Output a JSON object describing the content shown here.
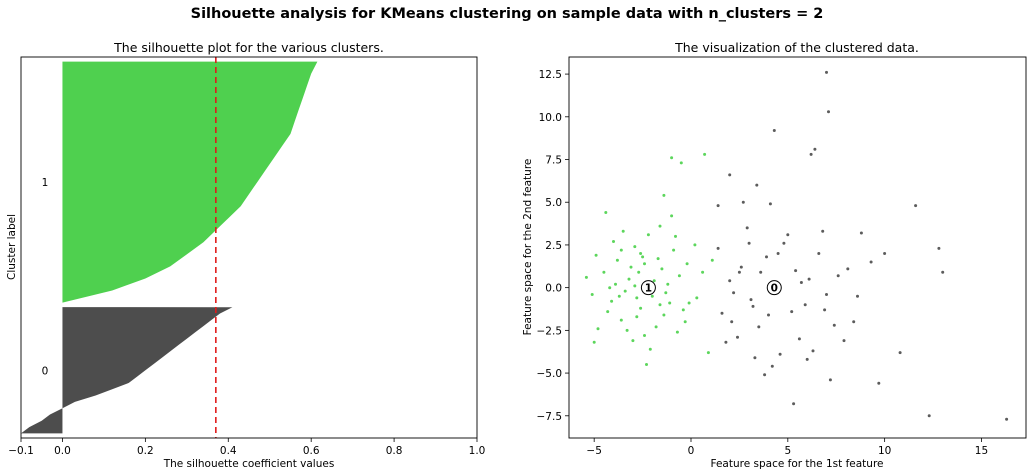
{
  "suptitle": "Silhouette analysis for KMeans clustering on sample data with n_clusters = 2",
  "chart_data": [
    {
      "type": "area",
      "title": "The silhouette plot for the various clusters.",
      "xlabel": "The silhouette coefficient values",
      "ylabel": "Cluster label",
      "xlim": [
        -0.1,
        1.0
      ],
      "xticks": [
        -0.1,
        0.0,
        0.2,
        0.4,
        0.6,
        0.8,
        1.0
      ],
      "xtick_labels": [
        "−0.1",
        "0.0",
        "0.2",
        "0.4",
        "0.6",
        "0.8",
        "1.0"
      ],
      "yticks": [
        {
          "label": "0",
          "cluster": 0
        },
        {
          "label": "1",
          "cluster": 1
        }
      ],
      "average_silhouette_score": 0.37,
      "clusters": [
        {
          "label": "0",
          "color": "#4d4d4d",
          "size": 275,
          "sorted_values": [
            -0.1,
            -0.08,
            -0.05,
            -0.03,
            0.0,
            0.03,
            0.08,
            0.12,
            0.16,
            0.18,
            0.2,
            0.22,
            0.24,
            0.26,
            0.28,
            0.3,
            0.32,
            0.34,
            0.36,
            0.38,
            0.41
          ]
        },
        {
          "label": "1",
          "color": "#4fd04f",
          "size": 525,
          "sorted_values": [
            0.0,
            0.12,
            0.2,
            0.26,
            0.3,
            0.34,
            0.37,
            0.4,
            0.43,
            0.45,
            0.47,
            0.49,
            0.51,
            0.53,
            0.55,
            0.56,
            0.57,
            0.58,
            0.59,
            0.6,
            0.615
          ]
        }
      ]
    },
    {
      "type": "scatter",
      "title": "The visualization of the clustered data.",
      "xlabel": "Feature space for the 1st feature",
      "ylabel": "Feature space for the 2nd feature",
      "xlim": [
        -6.3,
        17.3
      ],
      "ylim": [
        -8.8,
        13.5
      ],
      "xticks": [
        -5,
        0,
        5,
        10,
        15
      ],
      "xtick_labels": [
        "−5",
        "0",
        "5",
        "10",
        "15"
      ],
      "yticks": [
        -7.5,
        -5.0,
        -2.5,
        0.0,
        2.5,
        5.0,
        7.5,
        10.0,
        12.5
      ],
      "ytick_labels": [
        "−7.5",
        "−5.0",
        "−2.5",
        "0.0",
        "2.5",
        "5.0",
        "7.5",
        "10.0",
        "12.5"
      ],
      "series": [
        {
          "name": "cluster 1",
          "color": "#3fcf3f",
          "points": [
            [
              -2.1,
              0.0
            ],
            [
              -3.2,
              0.5
            ],
            [
              -2.8,
              -0.6
            ],
            [
              -1.5,
              1.1
            ],
            [
              -4.1,
              -0.8
            ],
            [
              -2.5,
              1.8
            ],
            [
              -3.6,
              -1.9
            ],
            [
              -1.1,
              -0.9
            ],
            [
              -2.9,
              2.4
            ],
            [
              -4.5,
              0.9
            ],
            [
              -1.8,
              -2.3
            ],
            [
              -3.0,
              -3.1
            ],
            [
              -0.6,
              0.7
            ],
            [
              -5.1,
              -0.4
            ],
            [
              -2.2,
              3.1
            ],
            [
              -1.4,
              -1.6
            ],
            [
              -3.8,
              1.6
            ],
            [
              -2.6,
              -1.2
            ],
            [
              -0.9,
              2.2
            ],
            [
              -4.8,
              -2.4
            ],
            [
              -1.9,
              0.4
            ],
            [
              -3.4,
              -0.2
            ],
            [
              -2.0,
              -0.5
            ],
            [
              -1.2,
              0.2
            ],
            [
              -2.7,
              0.9
            ],
            [
              -3.9,
              0.2
            ],
            [
              -4.3,
              -1.4
            ],
            [
              -0.4,
              -1.3
            ],
            [
              -1.6,
              3.6
            ],
            [
              -2.4,
              -2.8
            ],
            [
              -3.1,
              1.2
            ],
            [
              -0.2,
              1.4
            ],
            [
              -5.4,
              0.6
            ],
            [
              -1.0,
              4.2
            ],
            [
              -2.3,
              -4.5
            ],
            [
              0.3,
              -0.6
            ],
            [
              -3.5,
              3.3
            ],
            [
              -4.9,
              1.9
            ],
            [
              -0.7,
              -2.6
            ],
            [
              -2.8,
              -1.7
            ],
            [
              -1.3,
              -0.3
            ],
            [
              -4.0,
              2.7
            ],
            [
              0.6,
              0.9
            ],
            [
              -3.3,
              -2.5
            ],
            [
              -2.6,
              2.0
            ],
            [
              -1.7,
              1.7
            ],
            [
              -0.8,
              3.0
            ],
            [
              -4.4,
              4.4
            ],
            [
              -5.0,
              -3.2
            ],
            [
              -0.1,
              -0.9
            ],
            [
              -1.0,
              7.6
            ],
            [
              0.7,
              7.8
            ],
            [
              -0.5,
              7.3
            ],
            [
              0.9,
              -3.8
            ],
            [
              1.1,
              1.6
            ],
            [
              -1.4,
              5.4
            ],
            [
              -3.7,
              -0.5
            ],
            [
              -2.1,
              -3.6
            ],
            [
              -4.2,
              0.0
            ],
            [
              -1.6,
              -1.0
            ],
            [
              -0.3,
              -2.0
            ],
            [
              0.2,
              2.5
            ],
            [
              -2.9,
              0.1
            ],
            [
              -3.6,
              2.2
            ],
            [
              -2.4,
              1.4
            ]
          ]
        },
        {
          "name": "cluster 0",
          "color": "#404040",
          "points": [
            [
              4.3,
              0.0
            ],
            [
              3.1,
              -0.7
            ],
            [
              5.2,
              -1.4
            ],
            [
              2.6,
              1.2
            ],
            [
              6.1,
              0.5
            ],
            [
              4.8,
              2.6
            ],
            [
              3.5,
              -2.3
            ],
            [
              7.0,
              -0.4
            ],
            [
              2.0,
              0.4
            ],
            [
              5.6,
              -3.0
            ],
            [
              3.9,
              1.8
            ],
            [
              6.6,
              2.0
            ],
            [
              1.6,
              -1.5
            ],
            [
              8.1,
              1.1
            ],
            [
              4.6,
              -3.9
            ],
            [
              2.9,
              3.5
            ],
            [
              7.4,
              -2.2
            ],
            [
              5.0,
              3.1
            ],
            [
              3.3,
              -4.1
            ],
            [
              6.3,
              -3.7
            ],
            [
              1.4,
              2.3
            ],
            [
              9.3,
              1.5
            ],
            [
              2.4,
              -2.9
            ],
            [
              4.1,
              4.9
            ],
            [
              5.9,
              -1.0
            ],
            [
              7.9,
              -3.1
            ],
            [
              3.0,
              2.6
            ],
            [
              2.2,
              -0.3
            ],
            [
              6.8,
              3.3
            ],
            [
              4.0,
              -1.6
            ],
            [
              8.6,
              -0.5
            ],
            [
              2.7,
              5.0
            ],
            [
              5.4,
              1.0
            ],
            [
              3.6,
              0.9
            ],
            [
              10.0,
              2.0
            ],
            [
              11.6,
              4.8
            ],
            [
              13.0,
              0.9
            ],
            [
              12.8,
              2.3
            ],
            [
              10.8,
              -3.8
            ],
            [
              9.7,
              -5.6
            ],
            [
              7.2,
              -5.4
            ],
            [
              6.0,
              -4.2
            ],
            [
              12.3,
              -7.5
            ],
            [
              16.3,
              -7.7
            ],
            [
              5.3,
              -6.8
            ],
            [
              7.0,
              12.6
            ],
            [
              7.1,
              10.3
            ],
            [
              4.3,
              9.2
            ],
            [
              6.4,
              8.1
            ],
            [
              3.4,
              6.0
            ],
            [
              2.0,
              6.6
            ],
            [
              6.2,
              7.8
            ],
            [
              1.4,
              4.8
            ],
            [
              8.8,
              3.2
            ],
            [
              4.2,
              -4.6
            ],
            [
              3.8,
              -5.1
            ],
            [
              1.8,
              -3.2
            ],
            [
              2.5,
              0.9
            ],
            [
              5.7,
              0.3
            ],
            [
              3.2,
              -1.1
            ],
            [
              6.9,
              -1.3
            ],
            [
              4.5,
              2.0
            ],
            [
              7.6,
              0.7
            ],
            [
              2.1,
              -2.0
            ],
            [
              8.4,
              -2.0
            ]
          ]
        }
      ],
      "centers": [
        {
          "label": "1",
          "x": -2.2,
          "y": 0.0
        },
        {
          "label": "0",
          "x": 4.3,
          "y": 0.0
        }
      ]
    }
  ]
}
